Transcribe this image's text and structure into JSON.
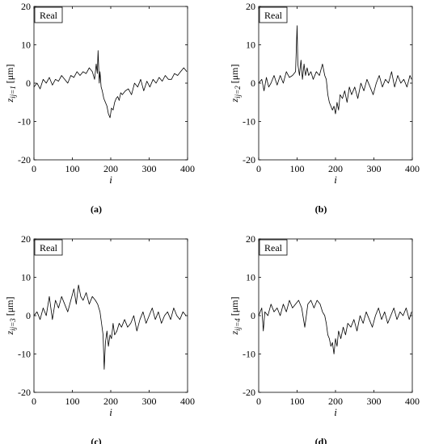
{
  "chart_data": [
    {
      "type": "line",
      "panel_label": "(a)",
      "legend": "Real",
      "xlabel": "i",
      "ylabel_base": "z",
      "ylabel_sub": "ij=1",
      "ylabel_unit": "[μm]",
      "xlim": [
        0,
        400
      ],
      "ylim": [
        -20,
        20
      ],
      "xticks": [
        0,
        100,
        200,
        300,
        400
      ],
      "yticks": [
        -20,
        -10,
        0,
        10,
        20
      ],
      "series": [
        {
          "color": "#000000",
          "x": [
            0,
            8,
            16,
            24,
            32,
            40,
            48,
            56,
            64,
            72,
            80,
            88,
            96,
            104,
            112,
            120,
            128,
            136,
            144,
            152,
            158,
            162,
            165,
            167,
            170,
            172,
            175,
            178,
            182,
            186,
            190,
            194,
            198,
            202,
            206,
            210,
            214,
            218,
            222,
            226,
            230,
            238,
            246,
            254,
            262,
            270,
            278,
            286,
            294,
            302,
            310,
            318,
            326,
            334,
            342,
            350,
            358,
            366,
            374,
            382,
            390,
            398
          ],
          "y": [
            -1,
            0,
            -1.5,
            1,
            0,
            1.5,
            -0.5,
            1,
            0.5,
            2,
            1,
            0,
            2,
            1.5,
            3,
            2,
            3,
            2.5,
            4,
            3,
            1,
            5,
            2.5,
            8.5,
            0,
            3,
            -1,
            -2,
            -4,
            -5,
            -6,
            -8,
            -9,
            -6.5,
            -7,
            -5,
            -4,
            -3.5,
            -4.5,
            -2.5,
            -3,
            -2,
            -1.5,
            -3,
            0,
            -1,
            1,
            -2,
            0.5,
            -1,
            1,
            0,
            1.5,
            0.5,
            2,
            1,
            1,
            2.5,
            2,
            3,
            4,
            3
          ]
        }
      ]
    },
    {
      "type": "line",
      "panel_label": "(b)",
      "legend": "Real",
      "xlabel": "i",
      "ylabel_base": "z",
      "ylabel_sub": "ij=2",
      "ylabel_unit": "[μm]",
      "xlim": [
        0,
        400
      ],
      "ylim": [
        -20,
        20
      ],
      "xticks": [
        0,
        100,
        200,
        300,
        400
      ],
      "yticks": [
        -20,
        -10,
        0,
        10,
        20
      ],
      "series": [
        {
          "color": "#000000",
          "x": [
            0,
            8,
            14,
            20,
            26,
            32,
            40,
            48,
            56,
            64,
            72,
            80,
            88,
            96,
            100,
            102,
            106,
            110,
            114,
            118,
            122,
            126,
            130,
            136,
            142,
            150,
            158,
            166,
            172,
            176,
            180,
            184,
            188,
            192,
            196,
            200,
            204,
            208,
            212,
            218,
            224,
            230,
            236,
            242,
            250,
            258,
            266,
            274,
            282,
            290,
            298,
            306,
            314,
            322,
            330,
            338,
            346,
            354,
            362,
            370,
            378,
            386,
            394,
            398
          ],
          "y": [
            0,
            1,
            -2,
            1.5,
            -1,
            0,
            2,
            -0.5,
            2,
            0,
            3,
            1.5,
            2,
            3,
            15,
            5,
            2,
            6,
            1,
            5,
            2,
            4,
            2,
            3,
            1,
            3,
            2,
            5,
            2,
            1,
            -3,
            -5,
            -6,
            -7,
            -6,
            -8,
            -5,
            -7,
            -3,
            -4,
            -2,
            -5,
            -1,
            -3,
            -1,
            -4,
            0,
            -2,
            1,
            -1,
            -3,
            0,
            2,
            -1,
            1,
            0,
            3,
            -1,
            2,
            0,
            1,
            -1,
            2,
            1
          ]
        }
      ]
    },
    {
      "type": "line",
      "panel_label": "(c)",
      "legend": "Real",
      "xlabel": "i",
      "ylabel_base": "z",
      "ylabel_sub": "ij=3",
      "ylabel_unit": "[μm]",
      "xlim": [
        0,
        400
      ],
      "ylim": [
        -20,
        20
      ],
      "xticks": [
        0,
        100,
        200,
        300,
        400
      ],
      "yticks": [
        -20,
        -10,
        0,
        10,
        20
      ],
      "series": [
        {
          "color": "#000000",
          "x": [
            0,
            8,
            16,
            24,
            32,
            40,
            48,
            56,
            64,
            72,
            80,
            88,
            96,
            104,
            110,
            116,
            122,
            128,
            136,
            144,
            152,
            160,
            166,
            172,
            176,
            180,
            183,
            186,
            190,
            194,
            198,
            202,
            206,
            210,
            216,
            222,
            228,
            236,
            244,
            252,
            260,
            268,
            276,
            284,
            292,
            300,
            308,
            316,
            324,
            332,
            340,
            348,
            356,
            364,
            372,
            380,
            388,
            396
          ],
          "y": [
            0,
            1,
            -1,
            2,
            0,
            5,
            -1,
            4,
            2,
            5,
            3,
            1,
            4,
            7,
            3,
            8,
            5,
            4,
            6,
            3,
            5,
            4,
            3,
            1,
            -2,
            -5,
            -14,
            -7,
            -4,
            -8,
            -5,
            -6,
            -2,
            -5,
            -4,
            -2,
            -3,
            -1,
            -3,
            -2,
            0,
            -4,
            -1,
            1,
            -2,
            0,
            2,
            -1,
            1,
            -2,
            0,
            1,
            -1,
            2,
            0,
            -1,
            1,
            0
          ]
        }
      ]
    },
    {
      "type": "line",
      "panel_label": "(d)",
      "legend": "Real",
      "xlabel": "i",
      "ylabel_base": "z",
      "ylabel_sub": "ij=4",
      "ylabel_unit": "[μm]",
      "xlim": [
        0,
        400
      ],
      "ylim": [
        -20,
        20
      ],
      "xticks": [
        0,
        100,
        200,
        300,
        400
      ],
      "yticks": [
        -20,
        -10,
        0,
        10,
        20
      ],
      "series": [
        {
          "color": "#000000",
          "x": [
            0,
            8,
            12,
            16,
            24,
            32,
            40,
            48,
            56,
            64,
            72,
            80,
            88,
            96,
            104,
            112,
            120,
            128,
            136,
            144,
            152,
            160,
            166,
            172,
            176,
            180,
            184,
            188,
            192,
            196,
            200,
            204,
            208,
            214,
            220,
            226,
            232,
            240,
            248,
            256,
            264,
            272,
            280,
            288,
            296,
            304,
            312,
            320,
            328,
            336,
            344,
            352,
            360,
            368,
            376,
            384,
            392,
            398
          ],
          "y": [
            0,
            2,
            -4,
            1,
            0,
            3,
            1,
            2,
            0,
            3,
            1,
            4,
            2,
            3,
            4,
            2,
            -3,
            3,
            4,
            2,
            4,
            3,
            1,
            0,
            -2,
            -5,
            -6,
            -8,
            -7,
            -10,
            -6,
            -8,
            -4,
            -6,
            -3,
            -5,
            -2,
            -3,
            -1,
            -4,
            0,
            -2,
            1,
            -1,
            -3,
            0,
            2,
            -1,
            1,
            -2,
            0,
            2,
            -1,
            1,
            0,
            2,
            -1,
            1
          ]
        }
      ]
    }
  ]
}
